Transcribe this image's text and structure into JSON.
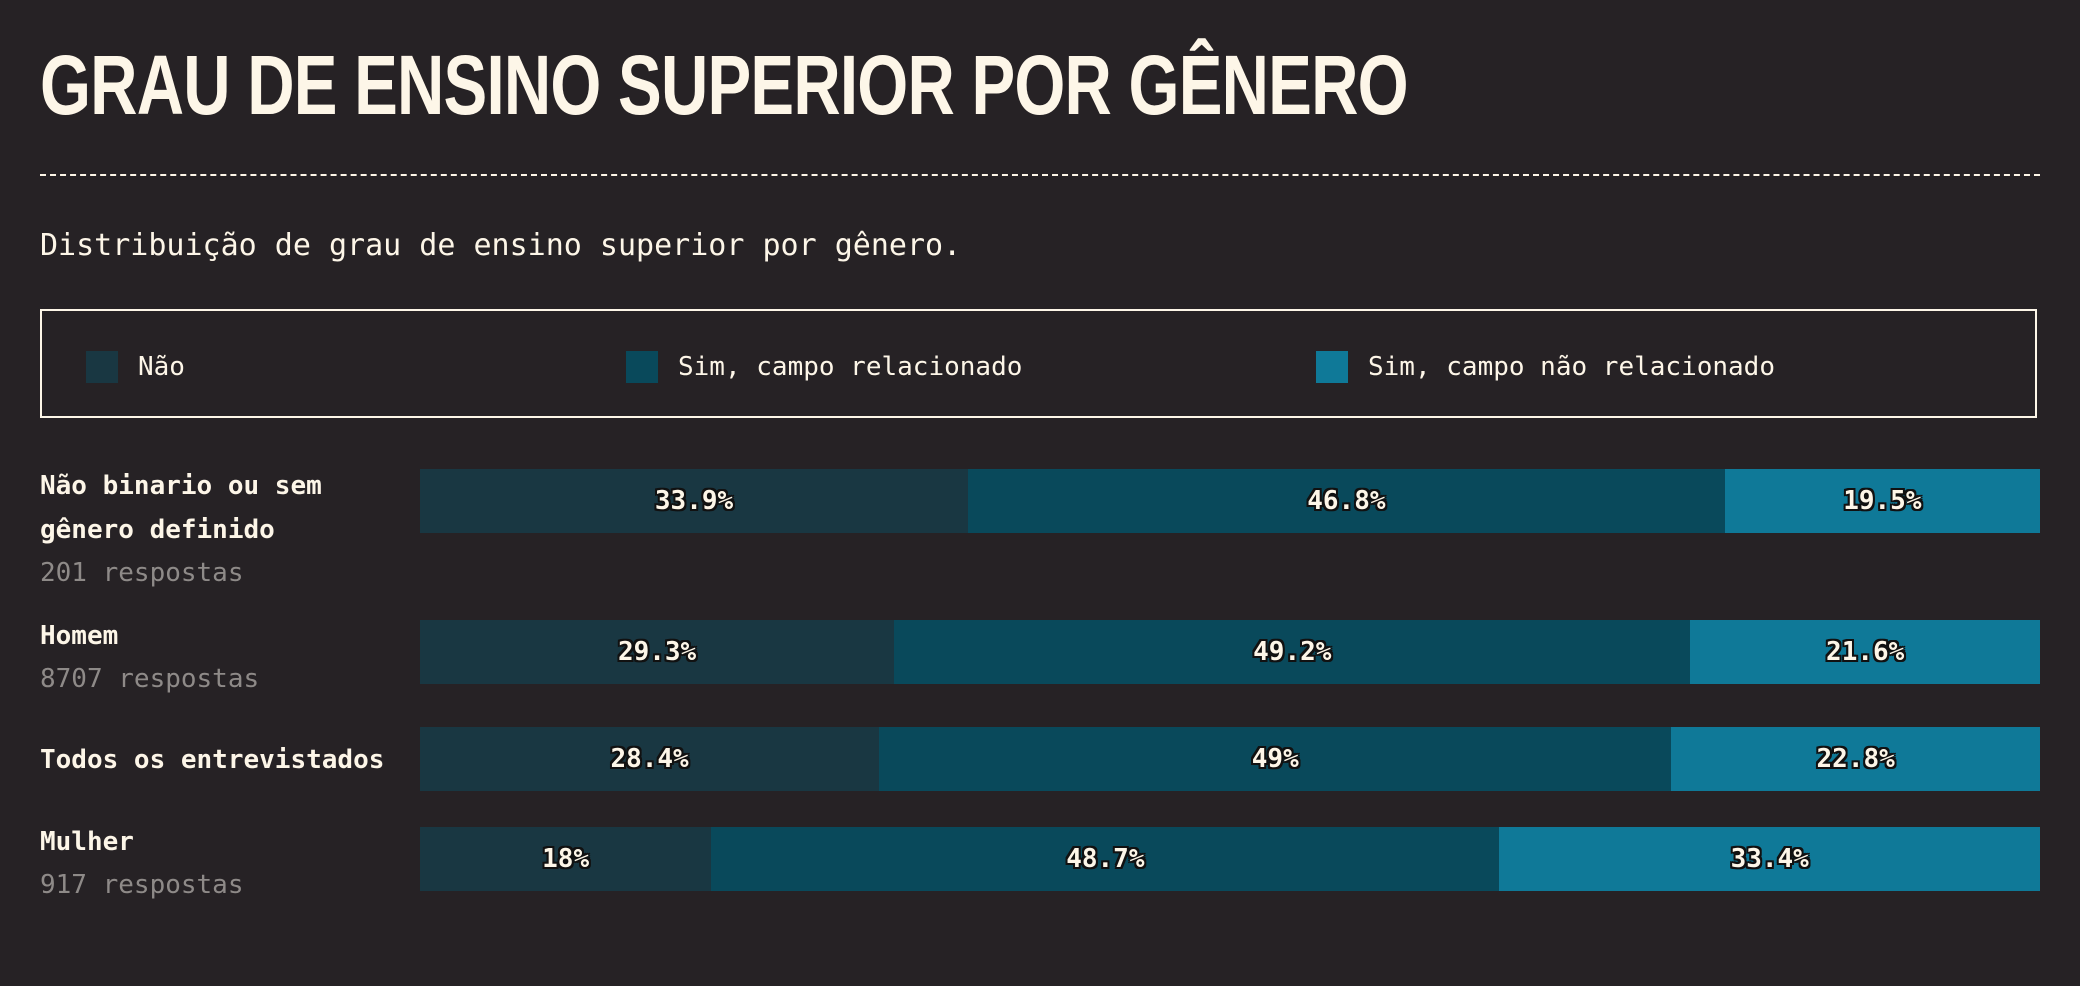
{
  "title": "GRAU DE ENSINO SUPERIOR POR GÊNERO",
  "subtitle": "Distribuição de grau de ensino superior por gênero.",
  "colors": {
    "background": "#262225",
    "text": "#fdf6e8",
    "muted": "#8e8a88",
    "nao": "#193742",
    "sim_relacionado": "#09495b",
    "sim_nao_relacionado": "#0f7998"
  },
  "chart_data": {
    "type": "bar",
    "orientation": "horizontal",
    "stacked": true,
    "normalized": true,
    "title": "GRAU DE ENSINO SUPERIOR POR GÊNERO",
    "subtitle": "Distribuição de grau de ensino superior por gênero.",
    "legend": {
      "placement": "top",
      "entries": [
        "Não",
        "Sim, campo relacionado",
        "Sim, campo não relacionado"
      ]
    },
    "categories": [
      {
        "name": "Não binario ou sem gênero definido",
        "count_label": "201 respostas"
      },
      {
        "name": "Homem",
        "count_label": "8707 respostas"
      },
      {
        "name": "Todos os entrevistados",
        "count_label": ""
      },
      {
        "name": "Mulher",
        "count_label": "917 respostas"
      }
    ],
    "series": [
      {
        "name": "Não",
        "color": "#193742",
        "values": [
          33.9,
          29.3,
          28.4,
          18
        ],
        "labels": [
          "33.9%",
          "29.3%",
          "28.4%",
          "18%"
        ]
      },
      {
        "name": "Sim, campo relacionado",
        "color": "#09495b",
        "values": [
          46.8,
          49.2,
          49,
          48.7
        ],
        "labels": [
          "46.8%",
          "49.2%",
          "49%",
          "48.7%"
        ]
      },
      {
        "name": "Sim, campo não relacionado",
        "color": "#0f7998",
        "values": [
          19.5,
          21.6,
          22.8,
          33.4
        ],
        "labels": [
          "19.5%",
          "21.6%",
          "22.8%",
          "33.4%"
        ]
      }
    ],
    "xlim": [
      0,
      100
    ],
    "grid": false
  }
}
